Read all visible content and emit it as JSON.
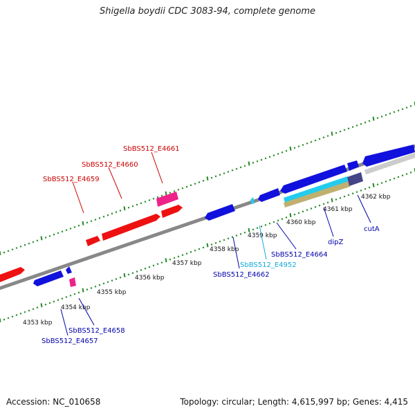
{
  "title": "Shigella boydii CDC 3083-94, complete genome",
  "footer": {
    "accession": "Accession: NC_010658",
    "summary": "Topology: circular; Length: 4,615,997 bp; Genes: 4,415"
  },
  "scale": {
    "tick_labels": [
      "4353 kbp",
      "4354 kbp",
      "4355 kbp",
      "4356 kbp",
      "4357 kbp",
      "4358 kbp",
      "4359 kbp",
      "4360 kbp",
      "4361 kbp",
      "4362 kbp"
    ]
  },
  "gene_labels": {
    "forward": [
      "SbBS512_E4659",
      "SbBS512_E4660",
      "SbBS512_E4661"
    ],
    "reverse": [
      "SbBS512_E4657",
      "SbBS512_E4658",
      "SbBS512_E4662",
      "SbBS512_E4952",
      "SbBS512_E4664",
      "dipZ",
      "cutA"
    ]
  },
  "colors": {
    "forward_cds": "#ee1111",
    "forward_pink": "#ee2288",
    "reverse_cds": "#1111dd",
    "reverse_cyan": "#22ccee",
    "backbone": "#888888",
    "ticks": "#228822",
    "label_red": "#cc0000",
    "label_blue": "#0000aa",
    "label_cyan": "#11aadd"
  }
}
